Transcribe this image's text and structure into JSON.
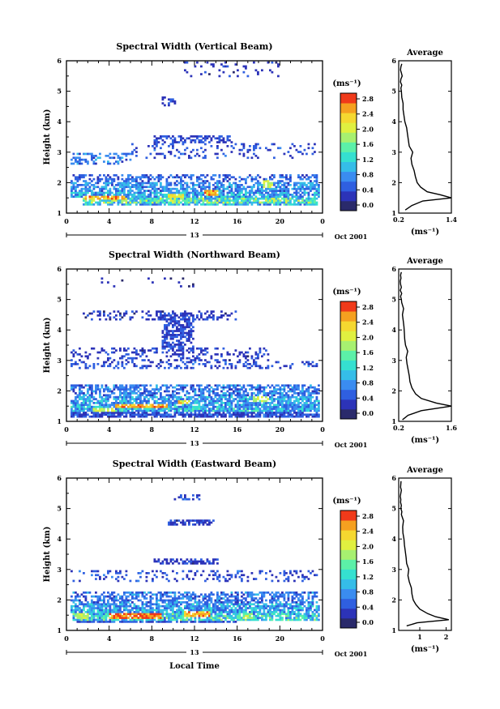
{
  "figure": {
    "x_axis_title": "Local Time",
    "date_label": "Oct 2001",
    "day_label": "13",
    "colorbar_unit": "(ms⁻¹)",
    "average_title": "Average",
    "average_unit": "(ms⁻¹)"
  },
  "colors": {
    "colormap": [
      "#2a2a6b",
      "#2c33b8",
      "#2f5fe0",
      "#3a8cf0",
      "#35bde8",
      "#35e0d0",
      "#5cf0a8",
      "#a7f070",
      "#e0f040",
      "#f5d830",
      "#f5a020",
      "#f03a1a"
    ],
    "frame": "#000000"
  },
  "chart_data": [
    {
      "type": "heatmap",
      "title": "Spectral Width (Vertical Beam)",
      "xlabel": "",
      "ylabel": "Height (km)",
      "xlim": [
        0,
        24
      ],
      "ylim": [
        1,
        6
      ],
      "x_ticks": [
        "0",
        "4",
        "8",
        "12",
        "16",
        "20",
        "0"
      ],
      "y_ticks": [
        "1",
        "2",
        "3",
        "4",
        "5",
        "6"
      ],
      "colorbar": {
        "range": [
          0,
          2.8
        ],
        "ticks": [
          "0.0",
          "0.4",
          "0.8",
          "1.2",
          "1.6",
          "2.0",
          "2.4",
          "2.8"
        ]
      },
      "layers": [
        {
          "y0": 1.25,
          "y1": 1.35,
          "x0": 1.5,
          "x1": 23.5,
          "v": 1.0,
          "fill": 0.75
        },
        {
          "y0": 1.35,
          "y1": 1.5,
          "x0": 1.5,
          "x1": 23.5,
          "v": 1.4,
          "fill": 0.9
        },
        {
          "y0": 1.5,
          "y1": 1.7,
          "x0": 0.3,
          "x1": 23.8,
          "v": 0.95,
          "fill": 0.8
        },
        {
          "y0": 1.7,
          "y1": 2.0,
          "x0": 0.3,
          "x1": 23.8,
          "v": 0.8,
          "fill": 0.7
        },
        {
          "y0": 2.0,
          "y1": 2.3,
          "x0": 0.3,
          "x1": 23.5,
          "v": 0.6,
          "fill": 0.45
        },
        {
          "y0": 2.6,
          "y1": 3.0,
          "x0": 0.3,
          "x1": 6,
          "v": 0.7,
          "fill": 0.4
        },
        {
          "y0": 2.8,
          "y1": 3.3,
          "x0": 6,
          "x1": 23.8,
          "v": 0.5,
          "fill": 0.15
        },
        {
          "y0": 3.3,
          "y1": 3.55,
          "x0": 8.2,
          "x1": 15.5,
          "v": 0.45,
          "fill": 0.55
        },
        {
          "y0": 4.5,
          "y1": 4.8,
          "x0": 9,
          "x1": 10.3,
          "v": 0.4,
          "fill": 0.4
        },
        {
          "y0": 5.5,
          "y1": 5.95,
          "x0": 11,
          "x1": 20,
          "v": 0.35,
          "fill": 0.1
        }
      ],
      "hot": [
        {
          "x0": 1.8,
          "x1": 5.5,
          "y0": 1.45,
          "y1": 1.6,
          "v": 2.5
        },
        {
          "x0": 9.5,
          "x1": 11,
          "y0": 1.5,
          "y1": 1.65,
          "v": 2.2
        },
        {
          "x0": 13,
          "x1": 14.3,
          "y0": 1.55,
          "y1": 1.75,
          "v": 2.6
        },
        {
          "x0": 18.5,
          "x1": 19.4,
          "y0": 1.8,
          "y1": 2.1,
          "v": 2.0
        }
      ],
      "average": {
        "xlim": [
          0.2,
          1.4
        ],
        "x_ticks": [
          "0.2",
          "1.4"
        ],
        "x": [
          0.35,
          0.5,
          0.75,
          1.4,
          1.15,
          0.85,
          0.7,
          0.62,
          0.58,
          0.55,
          0.5,
          0.48,
          0.52,
          0.44,
          0.42,
          0.4,
          0.38,
          0.34,
          0.32,
          0.3,
          0.3,
          0.27,
          0.26,
          0.25,
          0.27,
          0.24,
          0.25,
          0.28,
          0.26,
          0.24,
          0.25,
          0.27
        ],
        "y": [
          1.1,
          1.25,
          1.4,
          1.5,
          1.6,
          1.7,
          1.85,
          2.0,
          2.2,
          2.4,
          2.6,
          2.8,
          3.0,
          3.2,
          3.4,
          3.6,
          3.8,
          4.0,
          4.2,
          4.4,
          4.6,
          4.8,
          5.0,
          5.1,
          5.2,
          5.3,
          5.4,
          5.5,
          5.6,
          5.7,
          5.8,
          5.9
        ]
      }
    },
    {
      "type": "heatmap",
      "title": "Spectral Width (Northward Beam)",
      "xlabel": "",
      "ylabel": "Height (km)",
      "xlim": [
        0,
        24
      ],
      "ylim": [
        1,
        6
      ],
      "x_ticks": [
        "0",
        "4",
        "8",
        "12",
        "16",
        "20",
        "0"
      ],
      "y_ticks": [
        "1",
        "2",
        "3",
        "4",
        "5",
        "6"
      ],
      "colorbar": {
        "range": [
          0,
          2.8
        ],
        "ticks": [
          "0.0",
          "0.4",
          "0.8",
          "1.2",
          "1.6",
          "2.0",
          "2.4",
          "2.8"
        ]
      },
      "layers": [
        {
          "y0": 1.15,
          "y1": 1.3,
          "x0": 0.3,
          "x1": 23.8,
          "v": 0.5,
          "fill": 0.8
        },
        {
          "y0": 1.3,
          "y1": 1.5,
          "x0": 0.3,
          "x1": 23.8,
          "v": 1.0,
          "fill": 0.9
        },
        {
          "y0": 1.5,
          "y1": 1.8,
          "x0": 0.3,
          "x1": 23.8,
          "v": 0.9,
          "fill": 0.75
        },
        {
          "y0": 1.8,
          "y1": 2.2,
          "x0": 0.3,
          "x1": 23.8,
          "v": 0.7,
          "fill": 0.6
        },
        {
          "y0": 2.7,
          "y1": 3.0,
          "x0": 0.3,
          "x1": 23.5,
          "v": 0.5,
          "fill": 0.3
        },
        {
          "y0": 3.0,
          "y1": 3.4,
          "x0": 0.3,
          "x1": 19,
          "v": 0.4,
          "fill": 0.25
        },
        {
          "y0": 3.3,
          "y1": 4.6,
          "x0": 9,
          "x1": 12,
          "v": 0.45,
          "fill": 0.6
        },
        {
          "y0": 4.3,
          "y1": 4.65,
          "x0": 1.5,
          "x1": 16,
          "v": 0.4,
          "fill": 0.3
        },
        {
          "y0": 5.4,
          "y1": 5.7,
          "x0": 3,
          "x1": 14,
          "v": 0.3,
          "fill": 0.05
        }
      ],
      "hot": [
        {
          "x0": 2.5,
          "x1": 4.5,
          "y0": 1.3,
          "y1": 1.45,
          "v": 2.0
        },
        {
          "x0": 4.5,
          "x1": 9.5,
          "y0": 1.45,
          "y1": 1.6,
          "v": 2.6
        },
        {
          "x0": 10.5,
          "x1": 11.5,
          "y0": 1.55,
          "y1": 1.7,
          "v": 2.3
        },
        {
          "x0": 17.5,
          "x1": 19,
          "y0": 1.65,
          "y1": 1.85,
          "v": 1.9
        }
      ],
      "average": {
        "xlim": [
          0.2,
          1.6
        ],
        "x_ticks": [
          "0.2",
          "1.6"
        ],
        "x": [
          0.3,
          0.45,
          0.8,
          1.6,
          1.2,
          0.8,
          0.65,
          0.55,
          0.5,
          0.48,
          0.45,
          0.42,
          0.4,
          0.44,
          0.38,
          0.36,
          0.35,
          0.34,
          0.32,
          0.3,
          0.33,
          0.28,
          0.27,
          0.25,
          0.28,
          0.24,
          0.27,
          0.25,
          0.24,
          0.26,
          0.25,
          0.27
        ],
        "y": [
          1.05,
          1.2,
          1.35,
          1.5,
          1.6,
          1.75,
          1.9,
          2.1,
          2.3,
          2.5,
          2.7,
          2.9,
          3.1,
          3.3,
          3.5,
          3.7,
          3.9,
          4.1,
          4.3,
          4.5,
          4.7,
          4.9,
          5.0,
          5.1,
          5.2,
          5.3,
          5.4,
          5.5,
          5.6,
          5.7,
          5.8,
          5.9
        ]
      }
    },
    {
      "type": "heatmap",
      "title": "Spectral Width (Eastward Beam)",
      "xlabel": "Local Time",
      "ylabel": "Height (km)",
      "xlim": [
        0,
        24
      ],
      "ylim": [
        1,
        6
      ],
      "x_ticks": [
        "0",
        "4",
        "8",
        "12",
        "16",
        "20",
        "0"
      ],
      "y_ticks": [
        "1",
        "2",
        "3",
        "4",
        "5",
        "6"
      ],
      "colorbar": {
        "range": [
          0,
          2.8
        ],
        "ticks": [
          "0.0",
          "0.4",
          "0.8",
          "1.2",
          "1.6",
          "2.0",
          "2.4",
          "2.8"
        ]
      },
      "layers": [
        {
          "y0": 1.25,
          "y1": 1.35,
          "x0": 1,
          "x1": 16,
          "v": 0.5,
          "fill": 0.8
        },
        {
          "y0": 1.35,
          "y1": 1.6,
          "x0": 0.5,
          "x1": 23.8,
          "v": 1.2,
          "fill": 0.85
        },
        {
          "y0": 1.6,
          "y1": 1.9,
          "x0": 0.3,
          "x1": 23.8,
          "v": 0.9,
          "fill": 0.8
        },
        {
          "y0": 1.9,
          "y1": 2.3,
          "x0": 0.3,
          "x1": 23.5,
          "v": 0.7,
          "fill": 0.55
        },
        {
          "y0": 2.6,
          "y1": 3.0,
          "x0": 0.3,
          "x1": 23.8,
          "v": 0.5,
          "fill": 0.2
        },
        {
          "y0": 3.15,
          "y1": 3.35,
          "x0": 8.2,
          "x1": 14.5,
          "v": 0.4,
          "fill": 0.5
        },
        {
          "y0": 4.45,
          "y1": 4.65,
          "x0": 9.5,
          "x1": 14,
          "v": 0.4,
          "fill": 0.6
        },
        {
          "y0": 5.3,
          "y1": 5.45,
          "x0": 10,
          "x1": 12.5,
          "v": 0.5,
          "fill": 0.4
        }
      ],
      "hot": [
        {
          "x0": 4,
          "x1": 9,
          "y0": 1.4,
          "y1": 1.6,
          "v": 2.8
        },
        {
          "x0": 11,
          "x1": 13.5,
          "y0": 1.45,
          "y1": 1.65,
          "v": 2.5
        },
        {
          "x0": 0.8,
          "x1": 2,
          "y0": 1.4,
          "y1": 1.55,
          "v": 2.0
        },
        {
          "x0": 16.5,
          "x1": 17.5,
          "y0": 1.4,
          "y1": 1.6,
          "v": 1.8
        }
      ],
      "average": {
        "xlim": [
          0.2,
          2.2
        ],
        "x_ticks": [
          "1",
          "2"
        ],
        "x": [
          0.5,
          0.9,
          2.1,
          1.6,
          1.3,
          1.0,
          0.85,
          0.75,
          0.7,
          0.68,
          0.6,
          0.55,
          0.58,
          0.5,
          0.48,
          0.45,
          0.42,
          0.4,
          0.36,
          0.35,
          0.38,
          0.3,
          0.32,
          0.28,
          0.3,
          0.27,
          0.28,
          0.26,
          0.28,
          0.3,
          0.27,
          0.29
        ],
        "y": [
          1.15,
          1.25,
          1.35,
          1.45,
          1.55,
          1.7,
          1.85,
          2.0,
          2.2,
          2.4,
          2.6,
          2.8,
          3.0,
          3.2,
          3.4,
          3.6,
          3.8,
          4.0,
          4.2,
          4.4,
          4.6,
          4.8,
          4.9,
          5.0,
          5.1,
          5.2,
          5.3,
          5.4,
          5.5,
          5.6,
          5.7,
          5.9
        ]
      }
    }
  ]
}
